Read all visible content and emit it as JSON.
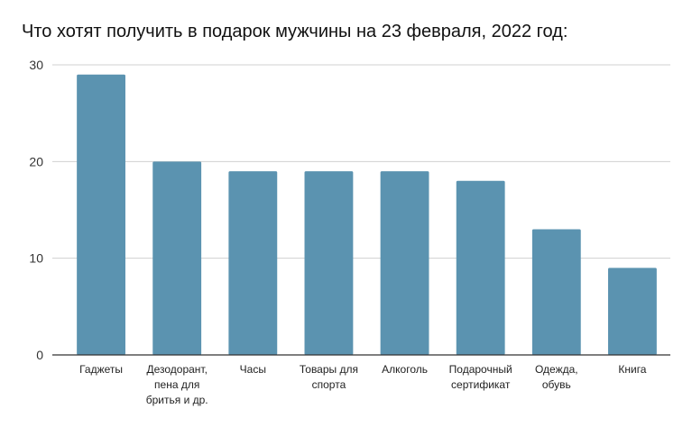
{
  "chart_data": {
    "type": "bar",
    "title": "Что хотят получить в подарок мужчины на 23 февраля, 2022 год:",
    "categories": [
      [
        "Гаджеты"
      ],
      [
        "Дезодорант,",
        "пена для",
        "бритья и др."
      ],
      [
        "Часы"
      ],
      [
        "Товары для",
        "спорта"
      ],
      [
        "Алкоголь"
      ],
      [
        "Подарочный",
        "сертификат"
      ],
      [
        "Одежда,",
        "обувь"
      ],
      [
        "Книга"
      ]
    ],
    "values": [
      29,
      20,
      19,
      19,
      19,
      18,
      13,
      9
    ],
    "ylim": [
      0,
      30
    ],
    "yticks": [
      0,
      10,
      20,
      30
    ],
    "grid": true,
    "legend": "none",
    "bar_color": "#5b93b0",
    "grid_color": "#d0d0d0",
    "axis_color": "#333333"
  }
}
